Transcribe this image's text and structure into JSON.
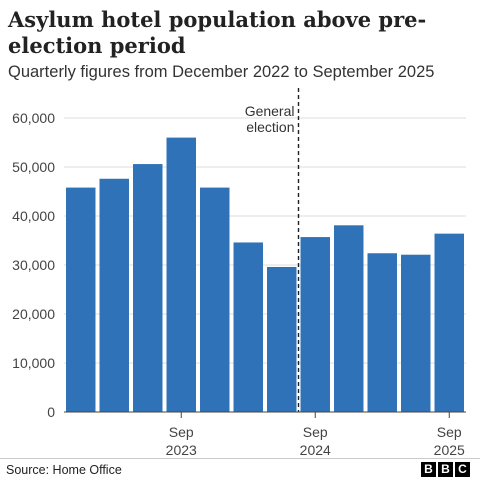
{
  "chart_data": {
    "type": "bar",
    "title": "Asylum hotel population above pre-election period",
    "subtitle": "Quarterly figures from December 2022 to September 2025",
    "values": [
      45800,
      47600,
      50600,
      56000,
      45800,
      34600,
      29600,
      35700,
      38100,
      32400,
      32100,
      36400
    ],
    "ylim": [
      0,
      60000
    ],
    "yticks": [
      "0",
      "10,000",
      "20,000",
      "30,000",
      "40,000",
      "50,000",
      "60,000"
    ],
    "xticks": [
      {
        "index": 3,
        "line1": "Sep",
        "line2": "2023"
      },
      {
        "index": 7,
        "line1": "Sep",
        "line2": "2024"
      },
      {
        "index": 11,
        "line1": "Sep",
        "line2": "2025"
      }
    ],
    "annotation": {
      "line1": "General",
      "line2": "election",
      "between": [
        6,
        7
      ]
    },
    "bar_color": "#3072b8",
    "grid": true
  },
  "footer": {
    "source": "Source: Home Office",
    "logo": [
      "B",
      "B",
      "C"
    ]
  }
}
